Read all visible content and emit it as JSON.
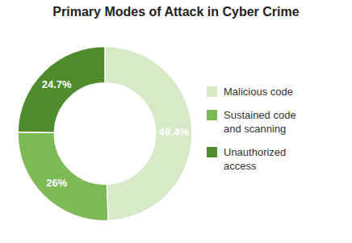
{
  "chart_data": {
    "type": "pie",
    "title": "Primary Modes of Attack in Cyber Crime",
    "categories": [
      "Malicious code",
      "Sustained code\nand scanning",
      "Unauthorized\naccess"
    ],
    "values": [
      49.4,
      25.9,
      24.7
    ],
    "value_labels": [
      "49.4%",
      "26%",
      "24.7%"
    ],
    "colors": [
      "#d6eac8",
      "#7dba56",
      "#4e8c2e"
    ],
    "data_labels": true,
    "legend": "right"
  }
}
